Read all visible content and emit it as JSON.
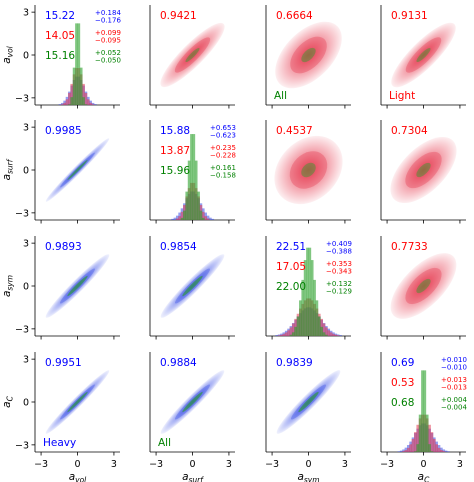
{
  "colors": {
    "heavy": "#0000ff",
    "light": "#ff0000",
    "all": "#008000",
    "heavy_fill": "#3a4fe6",
    "light_fill": "#e63a4f",
    "all_fill": "#2ca02c"
  },
  "variables": [
    "vol",
    "surf",
    "sym",
    "C"
  ],
  "axis_ticks": [
    "−3",
    "0",
    "3"
  ],
  "chart_data": {
    "type": "corner",
    "xlim": [
      -3.5,
      3.5
    ],
    "ylim": [
      -3.5,
      3.5
    ],
    "ticks": [
      -3,
      0,
      3
    ],
    "diagonal": [
      {
        "name": "vol",
        "label": "a",
        "sub": "vol",
        "estimates": [
          {
            "sample": "heavy",
            "value": "15.22",
            "plus": "+0.184",
            "minus": "−0.176",
            "sigma": 0.55
          },
          {
            "sample": "light",
            "value": "14.05",
            "plus": "+0.099",
            "minus": "−0.095",
            "sigma": 0.45
          },
          {
            "sample": "all",
            "value": "15.16",
            "plus": "+0.052",
            "minus": "−0.050",
            "sigma": 0.22
          }
        ]
      },
      {
        "name": "surf",
        "label": "a",
        "sub": "surf",
        "estimates": [
          {
            "sample": "heavy",
            "value": "15.88",
            "plus": "+0.653",
            "minus": "−0.623",
            "sigma": 0.65
          },
          {
            "sample": "light",
            "value": "13.87",
            "plus": "+0.235",
            "minus": "−0.228",
            "sigma": 0.5
          },
          {
            "sample": "all",
            "value": "15.96",
            "plus": "+0.161",
            "minus": "−0.158",
            "sigma": 0.32
          }
        ]
      },
      {
        "name": "sym",
        "label": "a",
        "sub": "sym",
        "estimates": [
          {
            "sample": "heavy",
            "value": "22.51",
            "plus": "+0.409",
            "minus": "−0.388",
            "sigma": 1.0
          },
          {
            "sample": "light",
            "value": "17.05",
            "plus": "+0.353",
            "minus": "−0.343",
            "sigma": 0.85
          },
          {
            "sample": "all",
            "value": "22.00",
            "plus": "+0.132",
            "minus": "−0.129",
            "sigma": 0.5
          }
        ]
      },
      {
        "name": "C",
        "label": "a",
        "sub": "C",
        "estimates": [
          {
            "sample": "heavy",
            "value": "0.69",
            "plus": "+0.010",
            "minus": "−0.010",
            "sigma": 0.75
          },
          {
            "sample": "light",
            "value": "0.53",
            "plus": "+0.013",
            "minus": "−0.013",
            "sigma": 0.6
          },
          {
            "sample": "all",
            "value": "0.68",
            "plus": "+0.004",
            "minus": "−0.004",
            "sigma": 0.22
          }
        ]
      }
    ],
    "lower_correlations": [
      {
        "row": 1,
        "col": 0,
        "r": "0.9985",
        "rho": 0.9985,
        "sample": "heavy"
      },
      {
        "row": 2,
        "col": 0,
        "r": "0.9893",
        "rho": 0.9893,
        "sample": "heavy"
      },
      {
        "row": 2,
        "col": 1,
        "r": "0.9854",
        "rho": 0.9854,
        "sample": "heavy"
      },
      {
        "row": 3,
        "col": 0,
        "r": "0.9951",
        "rho": 0.9951,
        "sample": "heavy"
      },
      {
        "row": 3,
        "col": 1,
        "r": "0.9884",
        "rho": 0.9884,
        "sample": "heavy"
      },
      {
        "row": 3,
        "col": 2,
        "r": "0.9839",
        "rho": 0.9839,
        "sample": "heavy"
      }
    ],
    "upper_correlations": [
      {
        "row": 0,
        "col": 1,
        "r": "0.9421",
        "rho": 0.9421,
        "sample": "light"
      },
      {
        "row": 0,
        "col": 2,
        "r": "0.6664",
        "rho": 0.6664,
        "sample": "light"
      },
      {
        "row": 0,
        "col": 3,
        "r": "0.9131",
        "rho": 0.9131,
        "sample": "light"
      },
      {
        "row": 1,
        "col": 2,
        "r": "0.4537",
        "rho": 0.4537,
        "sample": "light"
      },
      {
        "row": 1,
        "col": 3,
        "r": "0.7304",
        "rho": 0.7304,
        "sample": "light"
      },
      {
        "row": 2,
        "col": 3,
        "r": "0.7733",
        "rho": 0.7733,
        "sample": "light"
      }
    ],
    "panel_labels": [
      {
        "row": 0,
        "col": 2,
        "text": "All",
        "sample": "all"
      },
      {
        "row": 0,
        "col": 3,
        "text": "Light",
        "sample": "light"
      },
      {
        "row": 3,
        "col": 0,
        "text": "Heavy",
        "sample": "heavy"
      },
      {
        "row": 3,
        "col": 1,
        "text": "All",
        "sample": "all"
      }
    ]
  }
}
